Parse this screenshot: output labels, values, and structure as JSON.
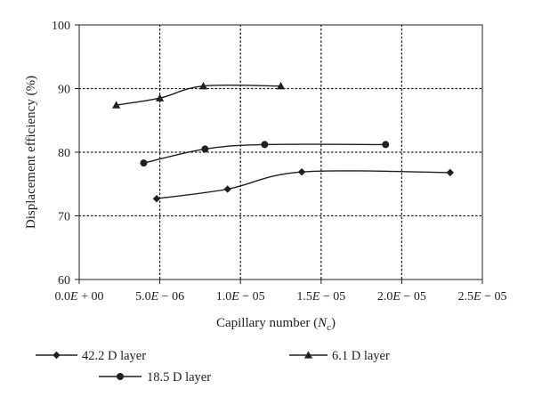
{
  "chart_data": {
    "type": "line",
    "title": "",
    "xlabel": "Capillary number (N_c)",
    "xlabel_parts": {
      "text": "Capillary number (",
      "symbol": "N",
      "subscript": "c",
      "close": ")"
    },
    "ylabel": "Displacement efficiency (%)",
    "xlim": [
      0,
      2.5e-05
    ],
    "ylim": [
      60,
      100
    ],
    "x_ticks": [
      0,
      5e-06,
      1e-05,
      1.5e-05,
      2e-05,
      2.5e-05
    ],
    "x_tick_labels": [
      {
        "mantissa": "0.0",
        "exponent": "+ 00"
      },
      {
        "mantissa": "5.0",
        "exponent": "− 06"
      },
      {
        "mantissa": "1.0",
        "exponent": "− 05"
      },
      {
        "mantissa": "1.5",
        "exponent": "− 05"
      },
      {
        "mantissa": "2.0",
        "exponent": "− 05"
      },
      {
        "mantissa": "2.5",
        "exponent": "− 05"
      }
    ],
    "y_ticks": [
      60,
      70,
      80,
      90,
      100
    ],
    "y_tick_labels": [
      "60",
      "70",
      "80",
      "90",
      "100"
    ],
    "grid": true,
    "legend_position": "bottom",
    "series": [
      {
        "name": "42.2 D layer",
        "marker": "diamond",
        "x": [
          4.8e-06,
          9.2e-06,
          1.38e-05,
          2.3e-05
        ],
        "y": [
          72.7,
          74.2,
          76.9,
          76.8
        ]
      },
      {
        "name": "6.1 D layer",
        "marker": "triangle",
        "x": [
          2.3e-06,
          5e-06,
          7.7e-06,
          1.25e-05
        ],
        "y": [
          87.4,
          88.5,
          90.4,
          90.4
        ]
      },
      {
        "name": "18.5 D layer",
        "marker": "circle",
        "x": [
          4e-06,
          7.8e-06,
          1.15e-05,
          1.9e-05
        ],
        "y": [
          78.3,
          80.5,
          81.2,
          81.2
        ]
      }
    ]
  }
}
